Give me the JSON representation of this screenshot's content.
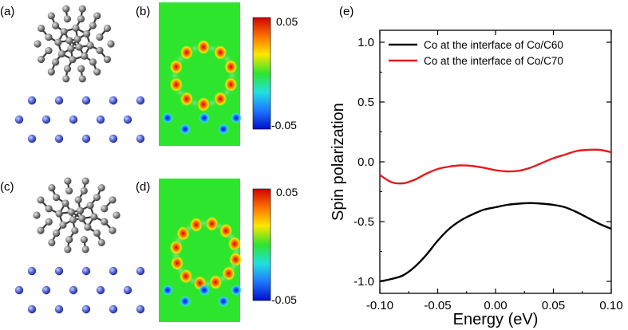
{
  "panels": {
    "a": "(a)",
    "b": "(b)",
    "c": "(c)",
    "d": "(d)",
    "e": "(e)"
  },
  "colorbar_b": {
    "max_label": "0.05",
    "min_label": "-0.05",
    "range": [
      -0.05,
      0.05
    ]
  },
  "colorbar_d": {
    "max_label": "0.05",
    "min_label": "-0.05",
    "range": [
      -0.05,
      0.05
    ]
  },
  "colors": {
    "c60_line": "#000000",
    "c70_line": "#e31a1c",
    "atom_gray": "#7d7d7d",
    "atom_blue": "#5a6ad8",
    "map_green": "#2ee52e"
  },
  "chart_data": {
    "type": "line",
    "title": "",
    "xlabel": "Energy (eV)",
    "ylabel": "Spin polarization",
    "xlim": [
      -0.1,
      0.1
    ],
    "ylim": [
      -1.1,
      1.1
    ],
    "xticks": [
      -0.1,
      -0.05,
      0.0,
      0.05,
      0.1
    ],
    "xtick_labels": [
      "-0.10",
      "-0.05",
      "0.00",
      "0.05",
      "0.10"
    ],
    "yticks": [
      -1.0,
      -0.5,
      0.0,
      0.5,
      1.0
    ],
    "ytick_labels": [
      "-1.0",
      "-0.5",
      "0.0",
      "0.5",
      "1.0"
    ],
    "legend_position": "top-left",
    "series": [
      {
        "name": "Co at the interface of Co/C60",
        "color": "#000000",
        "x": [
          -0.1,
          -0.09,
          -0.08,
          -0.07,
          -0.06,
          -0.05,
          -0.04,
          -0.03,
          -0.02,
          -0.01,
          0.0,
          0.01,
          0.02,
          0.03,
          0.04,
          0.05,
          0.06,
          0.07,
          0.08,
          0.09,
          0.1
        ],
        "y": [
          -1.0,
          -0.98,
          -0.95,
          -0.88,
          -0.78,
          -0.66,
          -0.56,
          -0.49,
          -0.44,
          -0.4,
          -0.38,
          -0.36,
          -0.35,
          -0.345,
          -0.35,
          -0.36,
          -0.38,
          -0.42,
          -0.47,
          -0.52,
          -0.56
        ]
      },
      {
        "name": "Co at the interface of Co/C70",
        "color": "#e31a1c",
        "x": [
          -0.1,
          -0.09,
          -0.08,
          -0.07,
          -0.06,
          -0.05,
          -0.04,
          -0.03,
          -0.02,
          -0.01,
          0.0,
          0.01,
          0.02,
          0.03,
          0.04,
          0.05,
          0.06,
          0.07,
          0.08,
          0.09,
          0.1
        ],
        "y": [
          -0.11,
          -0.17,
          -0.18,
          -0.15,
          -0.1,
          -0.06,
          -0.04,
          -0.03,
          -0.035,
          -0.05,
          -0.07,
          -0.08,
          -0.075,
          -0.05,
          -0.01,
          0.03,
          0.06,
          0.09,
          0.1,
          0.1,
          0.08
        ]
      }
    ]
  }
}
